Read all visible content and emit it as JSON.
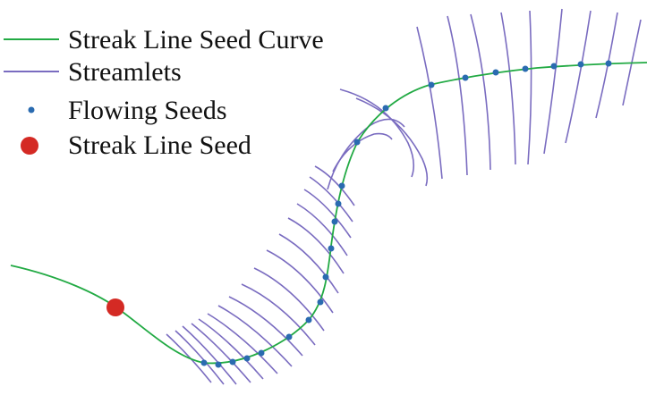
{
  "legend": {
    "items": [
      {
        "label": "Streak Line Seed Curve",
        "symbol": "line-icon",
        "color": "#22aa44"
      },
      {
        "label": "Streamlets",
        "symbol": "line-icon",
        "color": "#7a6cc0"
      },
      {
        "label": "Flowing Seeds",
        "symbol": "small-dot-icon",
        "color": "#2a6bb0"
      },
      {
        "label": "Streak Line Seed",
        "symbol": "large-dot-icon",
        "color": "#d42a24"
      }
    ]
  },
  "colors": {
    "seed_curve": "#22aa44",
    "streamlets": "#7a6cc0",
    "flowing_seeds": "#2a6bb0",
    "streak_seed": "#d42a24"
  }
}
